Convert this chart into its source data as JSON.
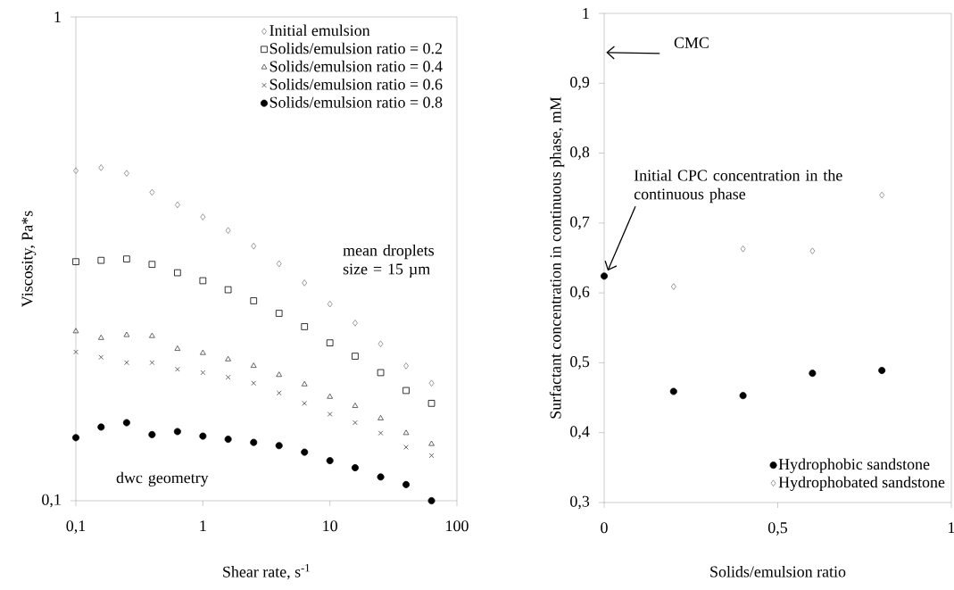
{
  "chart_data": [
    {
      "type": "scatter",
      "log": "xy",
      "xlabel": "Shear rate, s$^{-1}$",
      "ylabel": "Viscosity, Pa*s",
      "x": [
        0.1,
        0.158,
        0.251,
        0.398,
        0.631,
        1,
        1.58,
        2.51,
        3.98,
        6.31,
        10,
        15.8,
        25.1,
        39.8,
        63.1
      ],
      "xlim": [
        0.1,
        100
      ],
      "ylim": [
        0.1,
        1
      ],
      "xticks": [
        {
          "value": 0.1,
          "label": "0,1"
        },
        {
          "value": 1,
          "label": "1"
        },
        {
          "value": 10,
          "label": "10"
        },
        {
          "value": 100,
          "label": "100"
        }
      ],
      "yticks": [
        {
          "value": 0.1,
          "label": "0,1"
        },
        {
          "value": 1,
          "label": "1"
        }
      ],
      "legend": "top right",
      "grid": false,
      "annotations": [
        "mean droplets size = 15 µm",
        "dwc geometry"
      ],
      "series": [
        {
          "name": "Initial emulsion",
          "color": "#808080",
          "marker": "diamond",
          "values": [
            0.481,
            0.488,
            0.475,
            0.434,
            0.409,
            0.386,
            0.362,
            0.336,
            0.309,
            0.282,
            0.255,
            0.233,
            0.211,
            0.19,
            0.175
          ]
        },
        {
          "name": "Solids/emulsion ratio = 0.2",
          "color": "#000000",
          "marker": "square",
          "values": [
            0.312,
            0.314,
            0.316,
            0.308,
            0.296,
            0.285,
            0.273,
            0.259,
            0.244,
            0.229,
            0.212,
            0.199,
            0.184,
            0.169,
            0.159
          ]
        },
        {
          "name": "Solids/emulsion ratio = 0.4",
          "color": "#404040",
          "marker": "triangle",
          "values": [
            0.224,
            0.217,
            0.22,
            0.219,
            0.206,
            0.202,
            0.196,
            0.19,
            0.182,
            0.174,
            0.164,
            0.157,
            0.148,
            0.138,
            0.131
          ]
        },
        {
          "name": "Solids/emulsion ratio = 0.6",
          "color": "#404040",
          "marker": "cross",
          "values": [
            0.203,
            0.198,
            0.193,
            0.193,
            0.187,
            0.184,
            0.18,
            0.175,
            0.167,
            0.159,
            0.151,
            0.145,
            0.138,
            0.129,
            0.124
          ]
        },
        {
          "name": "Solids/emulsion ratio = 0.8",
          "color": "#000000",
          "marker": "circle",
          "values": [
            0.135,
            0.142,
            0.145,
            0.137,
            0.139,
            0.136,
            0.134,
            0.132,
            0.13,
            0.126,
            0.121,
            0.117,
            0.112,
            0.108,
            0.1
          ]
        }
      ]
    },
    {
      "type": "scatter",
      "xlabel": "Solids/emulsion ratio",
      "ylabel": "Surfactant concentration in continuous phase, mM",
      "xlim": [
        0,
        1
      ],
      "ylim": [
        0.3,
        1
      ],
      "xticks": [
        {
          "value": 0,
          "label": "0"
        },
        {
          "value": 0.5,
          "label": "0,5"
        },
        {
          "value": 1,
          "label": "1"
        }
      ],
      "yticks": [
        {
          "value": 0.3,
          "label": "0,3"
        },
        {
          "value": 0.4,
          "label": "0,4"
        },
        {
          "value": 0.5,
          "label": "0,5"
        },
        {
          "value": 0.6,
          "label": "0,6"
        },
        {
          "value": 0.7,
          "label": "0,7"
        },
        {
          "value": 0.8,
          "label": "0,8"
        },
        {
          "value": 0.9,
          "label": "0,9"
        },
        {
          "value": 1,
          "label": "1"
        }
      ],
      "legend": "bottom right",
      "grid": false,
      "annotations": [
        "CMC",
        {
          "text": "Initial CPC concentration in the continuous phase",
          "x": 0,
          "y": 0.624
        }
      ],
      "series": [
        {
          "name": "Hydrophobic sandstone",
          "color": "#000000",
          "marker": "circle",
          "x": [
            0,
            0.2,
            0.4,
            0.6,
            0.8
          ],
          "values": [
            0.624,
            0.459,
            0.453,
            0.485,
            0.489
          ]
        },
        {
          "name": "Hydrophobated sandstone",
          "color": "#808080",
          "marker": "diamond",
          "x": [
            0.2,
            0.4,
            0.6,
            0.8
          ],
          "values": [
            0.609,
            0.663,
            0.66,
            0.74
          ]
        }
      ]
    }
  ]
}
